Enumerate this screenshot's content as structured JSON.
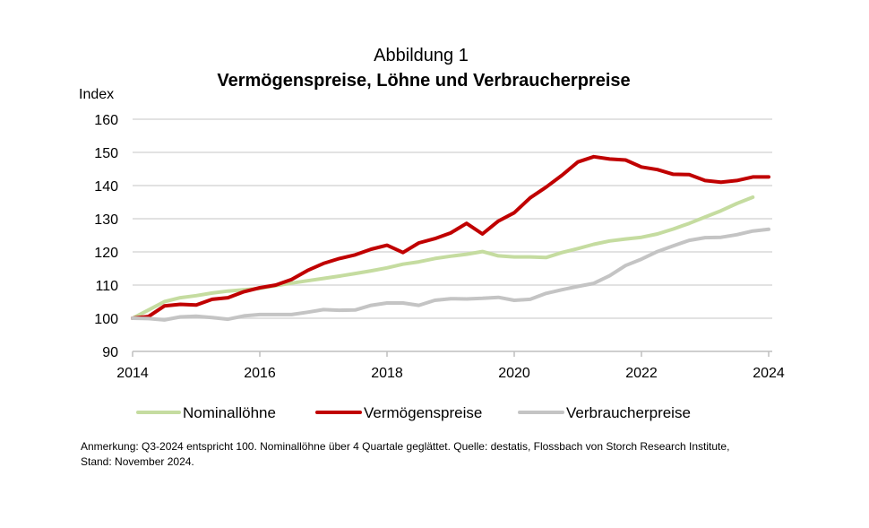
{
  "figure_label": "Abbildung 1",
  "title": "Vermögenspreise, Löhne und Verbraucherpreise",
  "ylabel": "Index",
  "note_line1": "Anmerkung: Q3-2024 entspricht 100. Nominallöhne über 4 Quartale geglättet. Quelle: destatis, Flossbach von Storch Research Institute,",
  "note_line2": "Stand: November 2024.",
  "chart_data": {
    "type": "line",
    "title": "Vermögenspreise, Löhne und Verbraucherpreise",
    "xlabel": "",
    "ylabel": "Index",
    "xlim": [
      2014,
      2024
    ],
    "ylim": [
      90,
      160
    ],
    "x_ticks": [
      2014,
      2016,
      2018,
      2020,
      2022,
      2024
    ],
    "y_ticks": [
      90,
      100,
      110,
      120,
      130,
      140,
      150,
      160
    ],
    "grid": true,
    "legend_position": "bottom",
    "series": [
      {
        "name": "Nominallöhne",
        "color": "#c5dca0",
        "x": [
          2014.0,
          2014.25,
          2014.5,
          2014.75,
          2015.0,
          2015.25,
          2015.5,
          2015.75,
          2016.0,
          2016.25,
          2016.5,
          2016.75,
          2017.0,
          2017.25,
          2017.5,
          2017.75,
          2018.0,
          2018.25,
          2018.5,
          2018.75,
          2019.0,
          2019.25,
          2019.5,
          2019.75,
          2020.0,
          2020.25,
          2020.5,
          2020.75,
          2021.0,
          2021.25,
          2021.5,
          2021.75,
          2022.0,
          2022.25,
          2022.5,
          2022.75,
          2023.0,
          2023.25,
          2023.5,
          2023.75
        ],
        "values": [
          100.0,
          102.5,
          105.0,
          106.2,
          106.8,
          107.6,
          108.2,
          108.6,
          109.0,
          109.8,
          110.6,
          111.3,
          112.0,
          112.7,
          113.5,
          114.3,
          115.2,
          116.3,
          117.0,
          118.0,
          118.7,
          119.3,
          120.1,
          118.8,
          118.5,
          118.5,
          118.3,
          119.8,
          121.0,
          122.3,
          123.3,
          123.9,
          124.4,
          125.4,
          126.9,
          128.6,
          130.5,
          132.4,
          134.6,
          136.5
        ]
      },
      {
        "name": "Vermögenspreise",
        "color": "#c00000",
        "x": [
          2014.0,
          2014.25,
          2014.5,
          2014.75,
          2015.0,
          2015.25,
          2015.5,
          2015.75,
          2016.0,
          2016.25,
          2016.5,
          2016.75,
          2017.0,
          2017.25,
          2017.5,
          2017.75,
          2018.0,
          2018.25,
          2018.5,
          2018.75,
          2019.0,
          2019.25,
          2019.5,
          2019.75,
          2020.0,
          2020.25,
          2020.5,
          2020.75,
          2021.0,
          2021.25,
          2021.5,
          2021.75,
          2022.0,
          2022.25,
          2022.5,
          2022.75,
          2023.0,
          2023.25,
          2023.5,
          2023.75,
          2024.0
        ],
        "values": [
          100.0,
          100.5,
          103.7,
          104.2,
          104.0,
          105.7,
          106.2,
          108.0,
          109.2,
          110.0,
          111.7,
          114.4,
          116.5,
          118.0,
          119.1,
          120.8,
          122.0,
          119.8,
          122.7,
          124.0,
          125.7,
          128.6,
          125.4,
          129.3,
          131.8,
          136.3,
          139.5,
          143.1,
          147.1,
          148.7,
          148.0,
          147.7,
          145.6,
          144.8,
          143.4,
          143.3,
          141.5,
          141.0,
          141.5,
          142.6,
          142.6
        ]
      },
      {
        "name": "Verbraucherpreise",
        "color": "#c4c4c4",
        "x": [
          2014.0,
          2014.25,
          2014.5,
          2014.75,
          2015.0,
          2015.25,
          2015.5,
          2015.75,
          2016.0,
          2016.25,
          2016.5,
          2016.75,
          2017.0,
          2017.25,
          2017.5,
          2017.75,
          2018.0,
          2018.25,
          2018.5,
          2018.75,
          2019.0,
          2019.25,
          2019.5,
          2019.75,
          2020.0,
          2020.25,
          2020.5,
          2020.75,
          2021.0,
          2021.25,
          2021.5,
          2021.75,
          2022.0,
          2022.25,
          2022.5,
          2022.75,
          2023.0,
          2023.25,
          2023.5,
          2023.75,
          2024.0
        ],
        "values": [
          100.0,
          99.9,
          99.5,
          100.4,
          100.6,
          100.2,
          99.7,
          100.7,
          101.1,
          101.1,
          101.1,
          101.8,
          102.6,
          102.4,
          102.5,
          103.9,
          104.6,
          104.6,
          103.9,
          105.4,
          105.9,
          105.8,
          106.0,
          106.3,
          105.4,
          105.7,
          107.5,
          108.6,
          109.6,
          110.5,
          112.8,
          115.9,
          117.8,
          120.1,
          121.8,
          123.5,
          124.3,
          124.4,
          125.2,
          126.3,
          126.8
        ]
      }
    ]
  }
}
